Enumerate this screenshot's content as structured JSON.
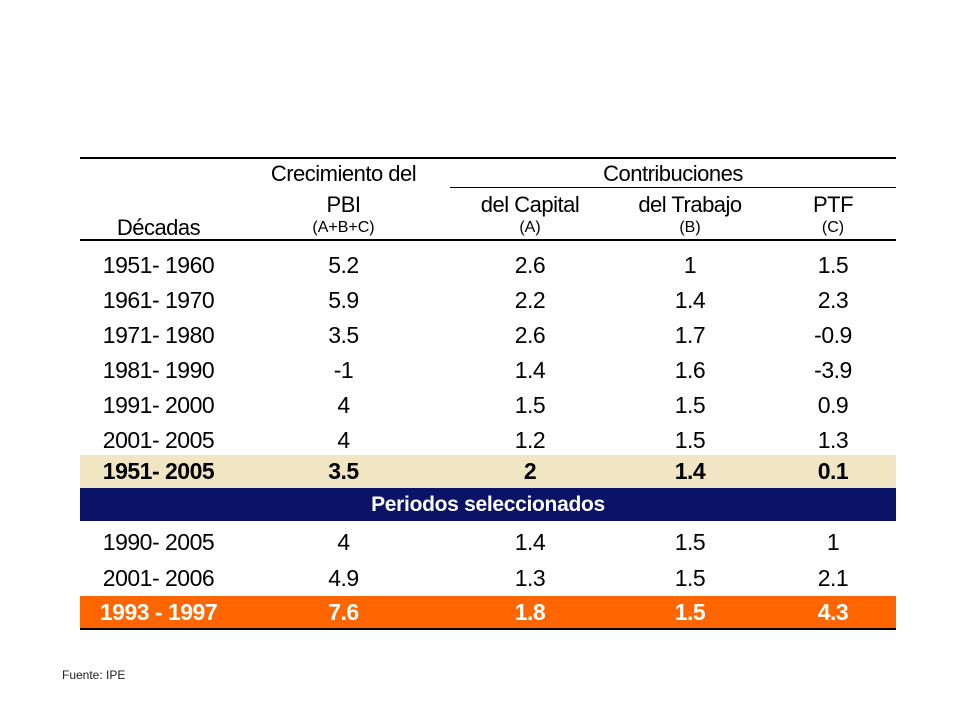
{
  "colors": {
    "average_row_bg": "#f0e6c3",
    "section_bg": "#0a1365",
    "highlight_row_bg": "#ff6600",
    "highlight_text": "#ffffff"
  },
  "header": {
    "col1_line1": "Crecimiento del",
    "col1_line2": "PBI",
    "col1_line3": "(A+B+C)",
    "group_label": "Contribuciones",
    "col0": "Décadas",
    "col2_line1": "del Capital",
    "col2_line2": "(A)",
    "col3_line1": "del Trabajo",
    "col3_line2": "(B)",
    "col4_line1": "PTF",
    "col4_line2": "(C)"
  },
  "decades": [
    [
      "1951- 1960",
      "5.2",
      "2.6",
      "1",
      "1.5"
    ],
    [
      "1961- 1970",
      "5.9",
      "2.2",
      "1.4",
      "2.3"
    ],
    [
      "1971- 1980",
      "3.5",
      "2.6",
      "1.7",
      "-0.9"
    ],
    [
      "1981- 1990",
      "-1",
      "1.4",
      "1.6",
      "-3.9"
    ],
    [
      "1991- 2000",
      "4",
      "1.5",
      "1.5",
      "0.9"
    ],
    [
      "2001- 2005",
      "4",
      "1.2",
      "1.5",
      "1.3"
    ]
  ],
  "average_row": [
    "1951- 2005",
    "3.5",
    "2",
    "1.4",
    "0.1"
  ],
  "section_title": "Periodos seleccionados",
  "selected": [
    [
      "1990- 2005",
      "4",
      "1.4",
      "1.5",
      "1"
    ],
    [
      "2001- 2006",
      "4.9",
      "1.3",
      "1.5",
      "2.1"
    ]
  ],
  "highlight_row": [
    "1993 - 1997",
    "7.6",
    "1.8",
    "1.5",
    "4.3"
  ],
  "source": "Fuente: IPE"
}
